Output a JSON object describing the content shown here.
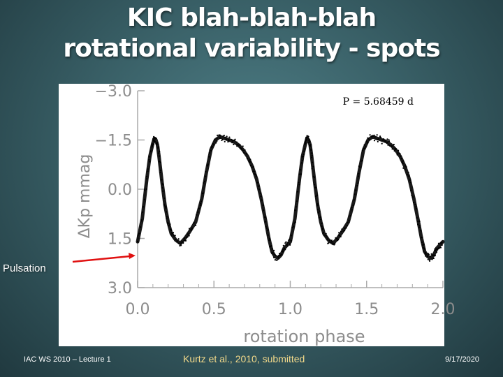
{
  "slide": {
    "title_line1": "KIC blah-blah-blah",
    "title_line2": "rotational variability - spots",
    "annotation_label": "Pulsation",
    "footer_left": "IAC WS 2010 – Lecture 1",
    "footer_center": "Kurtz et al., 2010, submitted",
    "footer_right": "9/17/2020"
  },
  "colors": {
    "arrow": "#e01010",
    "curve": "#000000",
    "axis": "#aaaaaa",
    "axis_text": "#8c8c8c"
  },
  "chart_data": {
    "type": "scatter",
    "title": "",
    "annotation": "P = 5.68459 d",
    "xlabel": "rotation phase",
    "ylabel": "ΔKp mmag",
    "xlim": [
      0.0,
      2.0
    ],
    "ylim": [
      3.0,
      -3.0
    ],
    "y_inverted": true,
    "x_ticks": [
      "0.0",
      "0.5",
      "1.0",
      "1.5",
      "2.0"
    ],
    "y_ticks": [
      "−3.0",
      "−1.5",
      "0.0",
      "1.5",
      "3.0"
    ],
    "grid": false,
    "series": [
      {
        "x": [
          0.0,
          0.03,
          0.06,
          0.08,
          0.1,
          0.11,
          0.12,
          0.13,
          0.14,
          0.16,
          0.18,
          0.2,
          0.22,
          0.25,
          0.28,
          0.31,
          0.34,
          0.38,
          0.42,
          0.45,
          0.48,
          0.51,
          0.54,
          0.57,
          0.6,
          0.63,
          0.66,
          0.69,
          0.72,
          0.75,
          0.78,
          0.81,
          0.84,
          0.86,
          0.88,
          0.9,
          0.92,
          0.94,
          0.96,
          0.98,
          1.0,
          1.03,
          1.06,
          1.08,
          1.1,
          1.11,
          1.12,
          1.13,
          1.14,
          1.16,
          1.18,
          1.2,
          1.22,
          1.25,
          1.28,
          1.31,
          1.34,
          1.38,
          1.42,
          1.45,
          1.48,
          1.51,
          1.54,
          1.57,
          1.6,
          1.63,
          1.66,
          1.69,
          1.72,
          1.75,
          1.78,
          1.81,
          1.84,
          1.86,
          1.88,
          1.9,
          1.92,
          1.94,
          1.96,
          1.98,
          2.0
        ],
        "y": [
          1.6,
          0.9,
          -0.3,
          -1.0,
          -1.4,
          -1.55,
          -1.5,
          -1.35,
          -1.0,
          -0.2,
          0.5,
          1.0,
          1.35,
          1.55,
          1.65,
          1.5,
          1.3,
          1.0,
          0.3,
          -0.5,
          -1.2,
          -1.5,
          -1.6,
          -1.55,
          -1.5,
          -1.45,
          -1.35,
          -1.2,
          -1.0,
          -0.7,
          -0.3,
          0.3,
          1.0,
          1.5,
          1.9,
          2.05,
          2.1,
          2.0,
          1.8,
          1.7,
          1.6,
          0.9,
          -0.3,
          -1.0,
          -1.4,
          -1.55,
          -1.5,
          -1.35,
          -1.0,
          -0.2,
          0.5,
          1.0,
          1.35,
          1.55,
          1.65,
          1.5,
          1.3,
          1.0,
          0.3,
          -0.5,
          -1.2,
          -1.5,
          -1.6,
          -1.55,
          -1.5,
          -1.45,
          -1.35,
          -1.2,
          -1.0,
          -0.7,
          -0.3,
          0.3,
          1.0,
          1.5,
          1.9,
          2.05,
          2.1,
          2.0,
          1.8,
          1.7,
          1.6
        ]
      }
    ]
  }
}
